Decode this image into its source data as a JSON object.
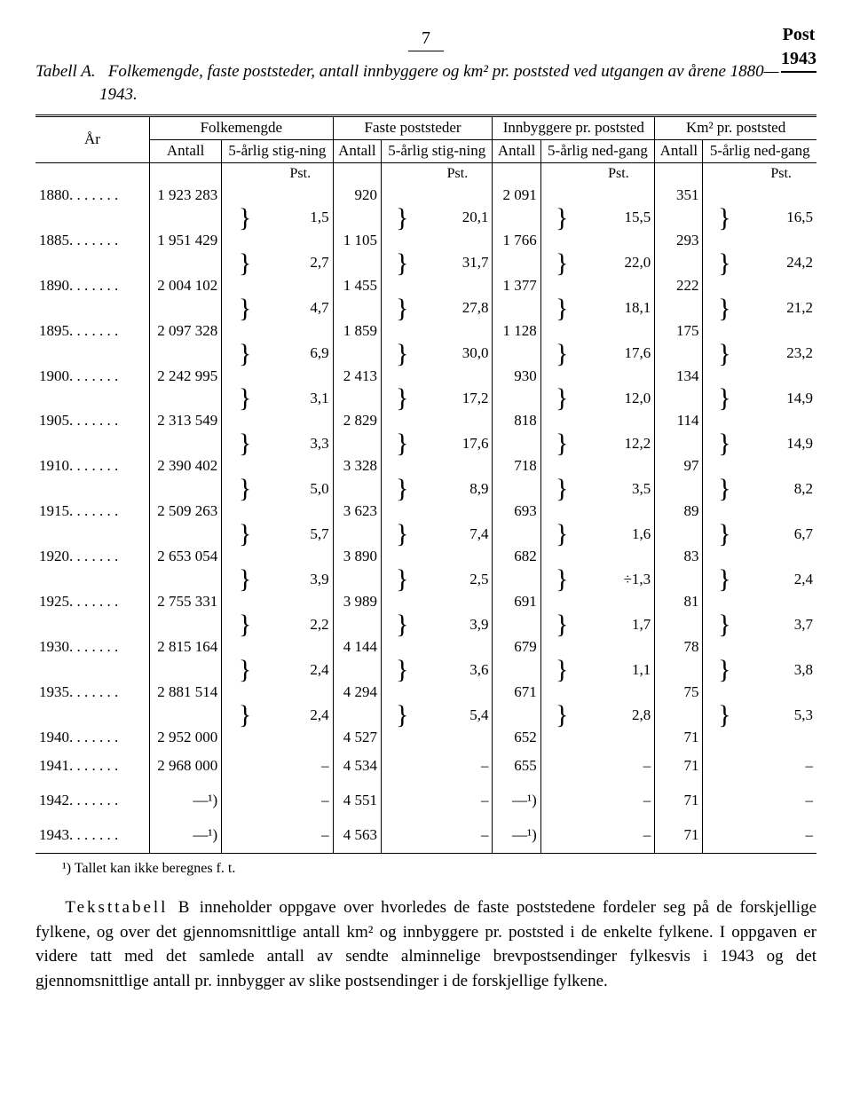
{
  "page": {
    "number": "7",
    "badge_line1": "Post",
    "badge_line2": "1943"
  },
  "caption": {
    "label": "Tabell A.",
    "text": "Folkemengde, faste poststeder, antall innbyggere og km² pr. poststed ved utgangen av årene 1880—1943."
  },
  "headers": {
    "year": "År",
    "grp1": "Folkemengde",
    "grp2": "Faste poststeder",
    "grp3": "Innbyggere pr. poststed",
    "grp4": "Km² pr. poststed",
    "antall": "Antall",
    "stig": "5-årlig stig-ning",
    "ned": "5-årlig ned-gang",
    "pst": "Pst."
  },
  "rows": [
    {
      "year": "1880. . . . . . .",
      "a1": "1 923 283",
      "a2": "920",
      "a3": "2 091",
      "a4": "351"
    },
    {
      "p1": "1,5",
      "p2": "20,1",
      "p3": "15,5",
      "p4": "16,5"
    },
    {
      "year": "1885. . . . . . .",
      "a1": "1 951 429",
      "a2": "1 105",
      "a3": "1 766",
      "a4": "293"
    },
    {
      "p1": "2,7",
      "p2": "31,7",
      "p3": "22,0",
      "p4": "24,2"
    },
    {
      "year": "1890. . . . . . .",
      "a1": "2 004 102",
      "a2": "1 455",
      "a3": "1 377",
      "a4": "222"
    },
    {
      "p1": "4,7",
      "p2": "27,8",
      "p3": "18,1",
      "p4": "21,2"
    },
    {
      "year": "1895. . . . . . .",
      "a1": "2 097 328",
      "a2": "1 859",
      "a3": "1 128",
      "a4": "175"
    },
    {
      "p1": "6,9",
      "p2": "30,0",
      "p3": "17,6",
      "p4": "23,2"
    },
    {
      "year": "1900. . . . . . .",
      "a1": "2 242 995",
      "a2": "2 413",
      "a3": "930",
      "a4": "134"
    },
    {
      "p1": "3,1",
      "p2": "17,2",
      "p3": "12,0",
      "p4": "14,9"
    },
    {
      "year": "1905. . . . . . .",
      "a1": "2 313 549",
      "a2": "2 829",
      "a3": "818",
      "a4": "114"
    },
    {
      "p1": "3,3",
      "p2": "17,6",
      "p3": "12,2",
      "p4": "14,9"
    },
    {
      "year": "1910. . . . . . .",
      "a1": "2 390 402",
      "a2": "3 328",
      "a3": "718",
      "a4": "97"
    },
    {
      "p1": "5,0",
      "p2": "8,9",
      "p3": "3,5",
      "p4": "8,2"
    },
    {
      "year": "1915. . . . . . .",
      "a1": "2 509 263",
      "a2": "3 623",
      "a3": "693",
      "a4": "89"
    },
    {
      "p1": "5,7",
      "p2": "7,4",
      "p3": "1,6",
      "p4": "6,7"
    },
    {
      "year": "1920. . . . . . .",
      "a1": "2 653 054",
      "a2": "3 890",
      "a3": "682",
      "a4": "83"
    },
    {
      "p1": "3,9",
      "p2": "2,5",
      "p3": "÷1,3",
      "p4": "2,4"
    },
    {
      "year": "1925. . . . . . .",
      "a1": "2 755 331",
      "a2": "3 989",
      "a3": "691",
      "a4": "81"
    },
    {
      "p1": "2,2",
      "p2": "3,9",
      "p3": "1,7",
      "p4": "3,7"
    },
    {
      "year": "1930. . . . . . .",
      "a1": "2 815 164",
      "a2": "4 144",
      "a3": "679",
      "a4": "78"
    },
    {
      "p1": "2,4",
      "p2": "3,6",
      "p3": "1,1",
      "p4": "3,8"
    },
    {
      "year": "1935. . . . . . .",
      "a1": "2 881 514",
      "a2": "4 294",
      "a3": "671",
      "a4": "75"
    },
    {
      "p1": "2,4",
      "p2": "5,4",
      "p3": "2,8",
      "p4": "5,3"
    },
    {
      "year": "1940. . . . . . .",
      "a1": "2 952 000",
      "a2": "4 527",
      "a3": "652",
      "a4": "71"
    }
  ],
  "tail": [
    {
      "year": "1941. . . . . . .",
      "a1": "2 968 000",
      "p1": "–",
      "a2": "4 534",
      "p2": "–",
      "a3": "655",
      "p3": "–",
      "a4": "71",
      "p4": "–"
    },
    {
      "year": "1942. . . . . . .",
      "a1": "—¹)",
      "p1": "–",
      "a2": "4 551",
      "p2": "–",
      "a3": "—¹)",
      "p3": "–",
      "a4": "71",
      "p4": "–"
    },
    {
      "year": "1943. . . . . . .",
      "a1": "—¹)",
      "p1": "–",
      "a2": "4 563",
      "p2": "–",
      "a3": "—¹)",
      "p3": "–",
      "a4": "71",
      "p4": "–"
    }
  ],
  "footnote": "¹) Tallet kan ikke beregnes f. t.",
  "bodytext": {
    "lead": "Teksttabell B",
    "rest": " inneholder oppgave over hvorledes de faste poststedene fordeler seg på de forskjellige fylkene, og over det gjennomsnittlige antall km² og innbyggere pr. poststed i de enkelte fylkene. I oppgaven er videre tatt med det samlede antall av sendte alminnelige brevpostsendinger fylkesvis i 1943 og det gjennomsnittlige antall pr. innbygger av slike postsendinger i de forskjellige fylkene."
  }
}
